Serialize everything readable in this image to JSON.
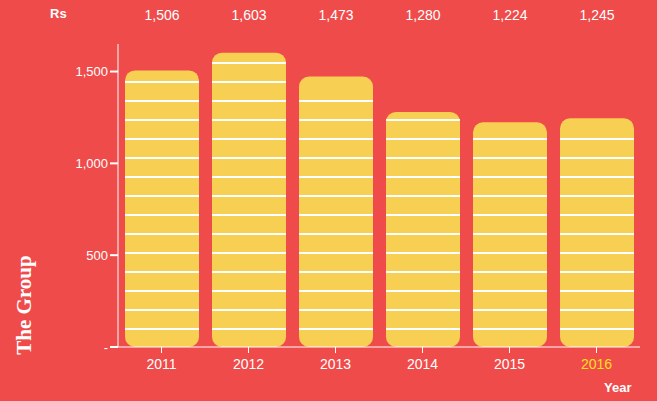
{
  "chart_data": {
    "type": "bar",
    "title": "The Group",
    "y_label": "Rs",
    "x_label": "Year",
    "categories": [
      "2011",
      "2012",
      "2013",
      "2014",
      "2015",
      "2016"
    ],
    "values": [
      1506,
      1603,
      1473,
      1280,
      1224,
      1245
    ],
    "value_labels": [
      "1,506",
      "1,603",
      "1,473",
      "1,280",
      "1,224",
      "1,245"
    ],
    "color": "#f7cf52",
    "ylim": [
      0,
      1650
    ],
    "yticks": [
      {
        "value": 0,
        "label": "-"
      },
      500,
      {
        "value": 1000,
        "label": "1,000"
      },
      {
        "value": 1500,
        "label": "1,500"
      }
    ],
    "grid": false,
    "data_labels": true
  }
}
